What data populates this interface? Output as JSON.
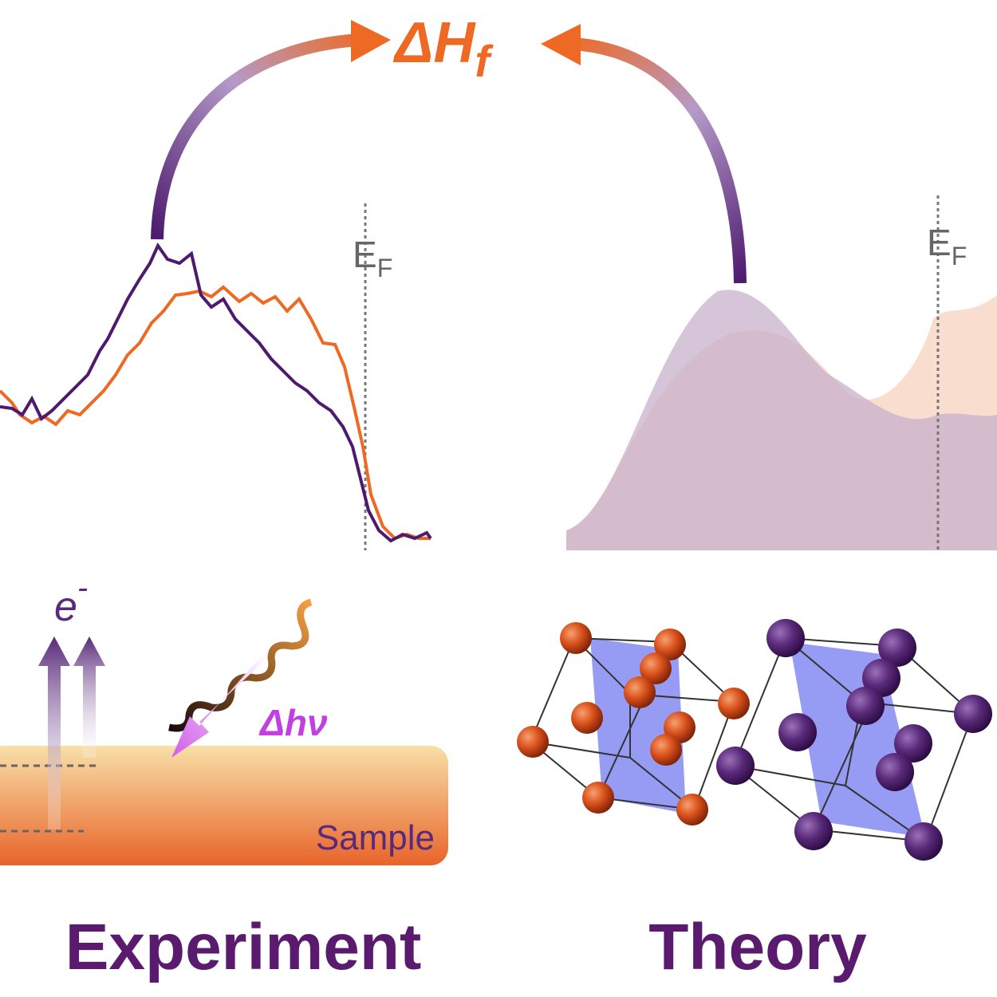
{
  "header": {
    "symbol": "ΔH",
    "subscript": "f"
  },
  "experiment": {
    "fermi_label": {
      "main": "E",
      "sub": "F"
    },
    "electron": {
      "main": "e",
      "sup": "-"
    },
    "photon": "Δhν",
    "sample": "Sample",
    "caption": "Experiment"
  },
  "theory": {
    "fermi_label": {
      "main": "E",
      "sub": "F"
    },
    "caption": "Theory"
  }
}
